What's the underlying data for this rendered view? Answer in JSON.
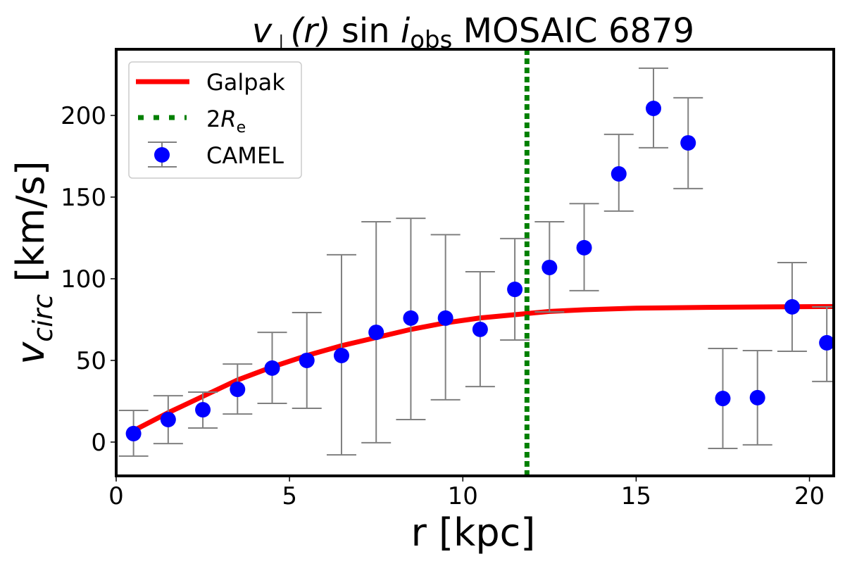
{
  "chart_data": {
    "type": "scatter",
    "title": {
      "v": "v",
      "perp": "⊥",
      "r": "(r)",
      "sin": " sin ",
      "i": "i",
      "obs": "obs",
      "rest": " MOSAIC 6879"
    },
    "xlabel": "r [kpc]",
    "ylabel": {
      "v": "v",
      "sub": "circ",
      "unit": " [km/s]"
    },
    "xlim": [
      0,
      20.7
    ],
    "ylim": [
      -20.7,
      240.5
    ],
    "xticks": [
      0,
      5,
      10,
      15,
      20
    ],
    "yticks": [
      0,
      50,
      100,
      150,
      200
    ],
    "grid": false,
    "legend_position": "top-left",
    "legend": [
      {
        "label": "Galpak",
        "color": "#ff0000",
        "style": "line"
      },
      {
        "label_main": "2",
        "label_italic": "R",
        "label_sub": "e",
        "color": "#008000",
        "style": "dotted"
      },
      {
        "label": "CAMEL",
        "color": "#0000ff",
        "style": "errorbar-marker"
      }
    ],
    "series": [
      {
        "name": "Galpak",
        "type": "line",
        "color": "#ff0000",
        "x": [
          0.5,
          1.5,
          2.5,
          3.5,
          4.5,
          5.5,
          6.5,
          7.5,
          8.5,
          9.5,
          10.5,
          11.5,
          12.5,
          13.5,
          15,
          17,
          19,
          20.7
        ],
        "y": [
          7,
          18,
          28,
          38,
          46,
          53,
          59,
          64,
          69,
          73,
          76,
          78,
          80,
          81,
          82,
          82.5,
          82.8,
          83
        ]
      },
      {
        "name": "CAMEL",
        "type": "errorbar",
        "color": "#0000ff",
        "errorbar_color": "#808080",
        "x": [
          0.5,
          1.5,
          2.5,
          3.5,
          4.5,
          5.5,
          6.5,
          7.5,
          8.5,
          9.5,
          10.5,
          11.5,
          12.5,
          13.5,
          14.5,
          15.5,
          16.5,
          17.5,
          18.5,
          19.5,
          20.5
        ],
        "y": [
          5.2,
          13.8,
          19.8,
          32.3,
          45.3,
          50,
          53,
          67.2,
          75.9,
          75.9,
          69,
          93.5,
          106.9,
          119,
          164.2,
          204.3,
          183.2,
          26.7,
          27.2,
          82.8,
          60.8
        ],
        "y_upper": [
          19.4,
          28.4,
          30.6,
          47.8,
          67.2,
          79.3,
          114.7,
          134.9,
          137,
          127,
          104.3,
          124.6,
          134.9,
          146,
          188.4,
          228.9,
          210.8,
          57.3,
          56,
          109.9,
          82.8
        ],
        "y_lower": [
          -8.6,
          -0.9,
          8.6,
          17.2,
          23.7,
          20.7,
          -7.8,
          -0.4,
          13.8,
          25.9,
          34,
          62.5,
          79.7,
          92.7,
          141.4,
          180.2,
          155.2,
          -3.9,
          -1.7,
          55.6,
          37.1
        ]
      }
    ],
    "vline": {
      "name": "2Re",
      "x": 11.85,
      "color": "#008000",
      "style": "dotted"
    }
  }
}
